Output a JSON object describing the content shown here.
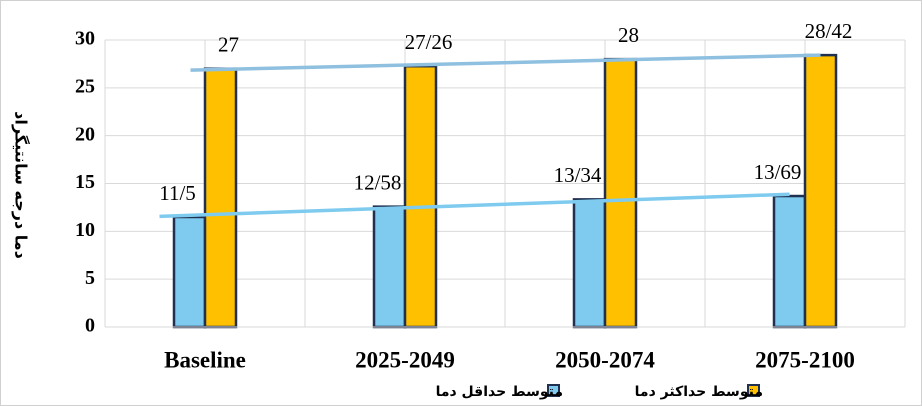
{
  "chart_data": {
    "type": "bar",
    "ylabel": "دما درجه سانتیگراد",
    "categories": [
      "Baseline",
      "2025-2049",
      "2050-2074",
      "2075-2100"
    ],
    "series": [
      {
        "name": "متوسط حداقل دما",
        "color": "#7ecbef",
        "values": [
          11.5,
          12.58,
          13.34,
          13.69
        ],
        "value_labels": [
          "11/5",
          "12/58",
          "13/34",
          "13/69"
        ],
        "trendline_color": "#7ecbef"
      },
      {
        "name": "متوسط حداکثر دما",
        "color": "#ffc000",
        "values": [
          27,
          27.26,
          28,
          28.42
        ],
        "value_labels": [
          "27",
          "27/26",
          "28",
          "28/42"
        ],
        "trendline_color": "#8fc0e0"
      }
    ],
    "ylim": [
      0,
      30
    ],
    "yticks": [
      0,
      5,
      10,
      15,
      20,
      25,
      30
    ],
    "grid": true,
    "trendline": true,
    "legend": "bottom-right"
  }
}
